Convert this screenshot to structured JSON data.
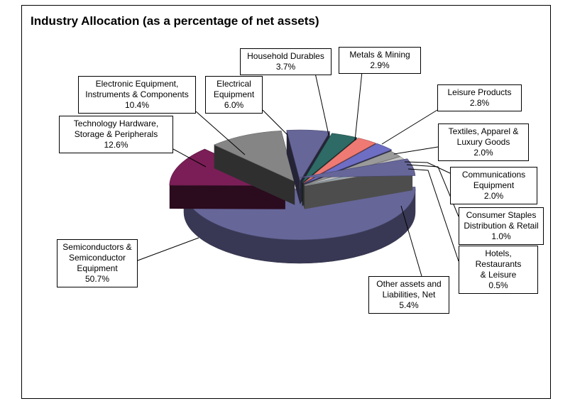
{
  "chart_data": {
    "type": "pie",
    "title": "Industry Allocation (as a percentage of net assets)",
    "slices": [
      {
        "label": "Semiconductors & Semiconductor Equipment",
        "label_lines": "Semiconductors &\nSemiconductor\nEquipment",
        "value": 50.7,
        "value_label": "50.7%",
        "color": "#666699"
      },
      {
        "label": "Technology Hardware, Storage & Peripherals",
        "label_lines": "Technology Hardware,\nStorage & Peripherals",
        "value": 12.6,
        "value_label": "12.6%",
        "color": "#7b1e57"
      },
      {
        "label": "Electronic Equipment, Instruments & Components",
        "label_lines": "Electronic Equipment,\nInstruments & Components",
        "value": 10.4,
        "value_label": "10.4%",
        "color": "#858585"
      },
      {
        "label": "Electrical Equipment",
        "label_lines": "Electrical\nEquipment",
        "value": 6.0,
        "value_label": "6.0%",
        "color": "#666699"
      },
      {
        "label": "Household Durables",
        "label_lines": "Household Durables",
        "value": 3.7,
        "value_label": "3.7%",
        "color": "#2f6b66"
      },
      {
        "label": "Metals & Mining",
        "label_lines": "Metals & Mining",
        "value": 2.9,
        "value_label": "2.9%",
        "color": "#ef7a74"
      },
      {
        "label": "Leisure Products",
        "label_lines": "Leisure Products",
        "value": 2.8,
        "value_label": "2.8%",
        "color": "#6e6ec4"
      },
      {
        "label": "Textiles, Apparel & Luxury Goods",
        "label_lines": "Textiles, Apparel &\nLuxury Goods",
        "value": 2.0,
        "value_label": "2.0%",
        "color": "#9a9a9a"
      },
      {
        "label": "Communications Equipment",
        "label_lines": "Communications\nEquipment",
        "value": 2.0,
        "value_label": "2.0%",
        "color": "#c4c4c4"
      },
      {
        "label": "Consumer Staples Distribution & Retail",
        "label_lines": "Consumer Staples\nDistribution & Retail",
        "value": 1.0,
        "value_label": "1.0%",
        "color": "#9fb8c8"
      },
      {
        "label": "Hotels, Restaurants & Leisure",
        "label_lines": "Hotels, Restaurants\n& Leisure",
        "value": 0.5,
        "value_label": "0.5%",
        "color": "#dcdcdc"
      },
      {
        "label": "Other assets and Liabilities, Net",
        "label_lines": "Other assets and\nLiabilities, Net",
        "value": 5.4,
        "value_label": "5.4%",
        "color": "#666699"
      }
    ]
  }
}
